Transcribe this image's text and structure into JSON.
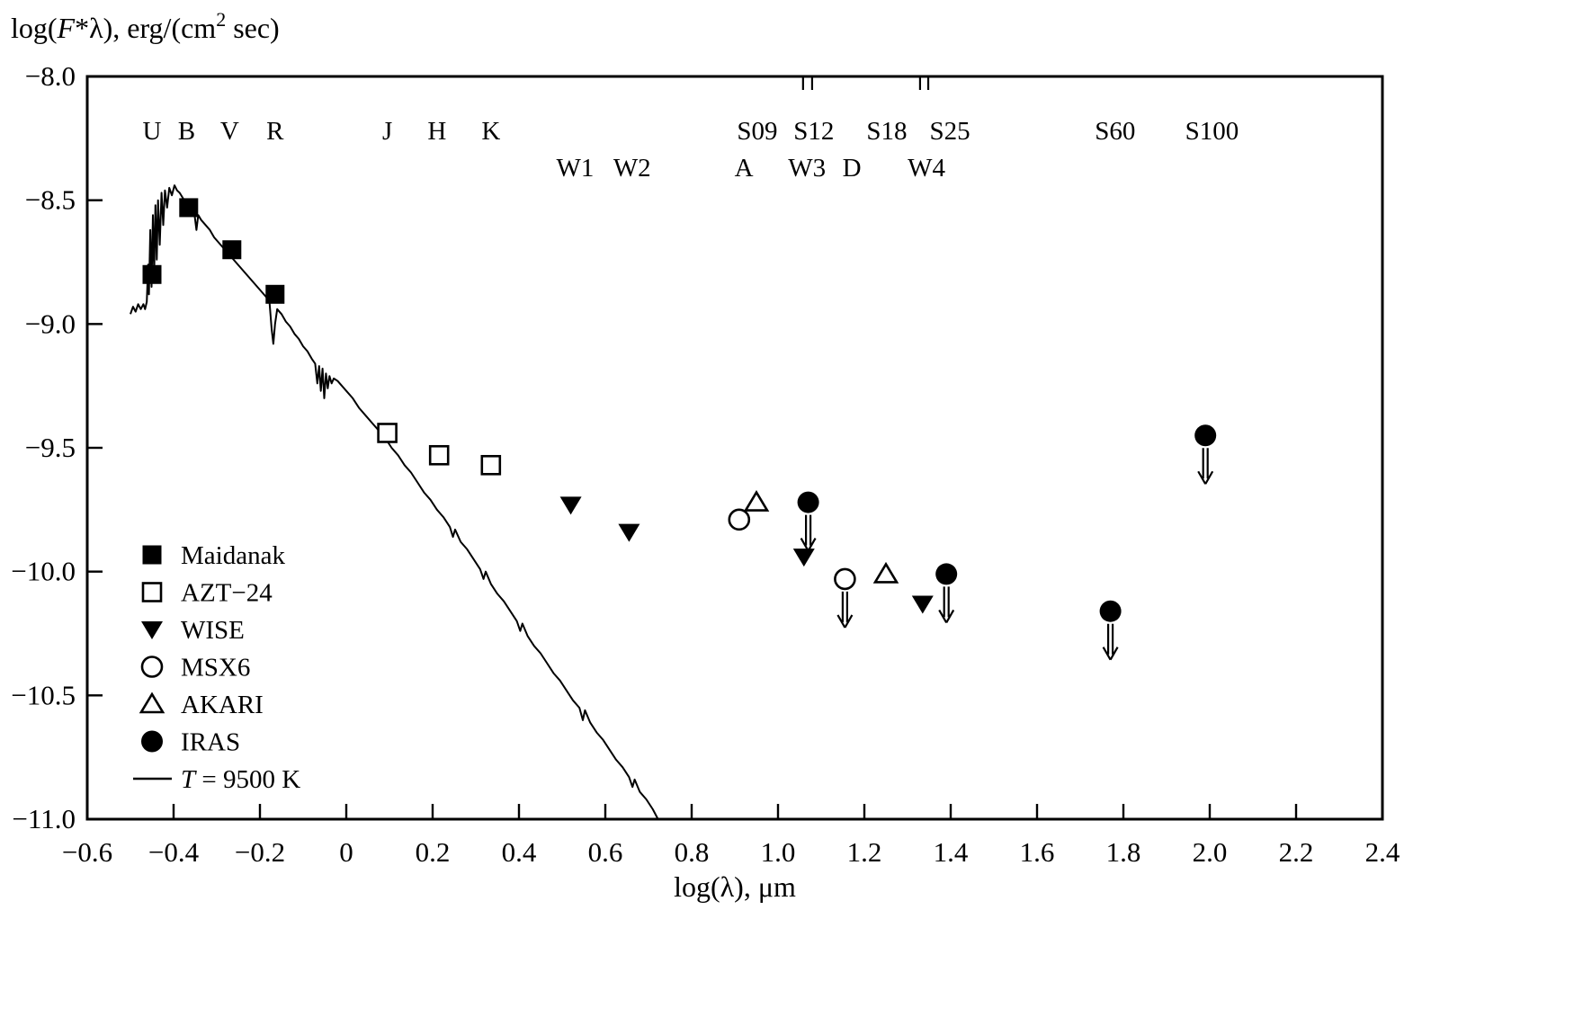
{
  "chart_data": {
    "type": "scatter",
    "title": "",
    "xlabel_parts": {
      "pre": "log(",
      "sym": "λ",
      "post": "), μm"
    },
    "ylabel_parts": {
      "pre": "log(",
      "f": "F",
      "mid": "*λ), erg/(cm",
      "sup": "2",
      "post": " sec)"
    },
    "xlim": [
      -0.6,
      2.4
    ],
    "ylim": [
      -11.0,
      -8.0
    ],
    "grid": false,
    "x_ticks": [
      {
        "v": -0.6,
        "label": "−0.6"
      },
      {
        "v": -0.4,
        "label": "−0.4"
      },
      {
        "v": -0.2,
        "label": "−0.2"
      },
      {
        "v": 0.0,
        "label": "0"
      },
      {
        "v": 0.2,
        "label": "0.2"
      },
      {
        "v": 0.4,
        "label": "0.4"
      },
      {
        "v": 0.6,
        "label": "0.6"
      },
      {
        "v": 0.8,
        "label": "0.8"
      },
      {
        "v": 1.0,
        "label": "1.0"
      },
      {
        "v": 1.2,
        "label": "1.2"
      },
      {
        "v": 1.4,
        "label": "1.4"
      },
      {
        "v": 1.6,
        "label": "1.6"
      },
      {
        "v": 1.8,
        "label": "1.8"
      },
      {
        "v": 2.0,
        "label": "2.0"
      },
      {
        "v": 2.2,
        "label": "2.2"
      },
      {
        "v": 2.4,
        "label": "2.4"
      }
    ],
    "y_ticks": [
      {
        "v": -8.0,
        "label": "−8.0"
      },
      {
        "v": -8.5,
        "label": "−8.5"
      },
      {
        "v": -9.0,
        "label": "−9.0"
      },
      {
        "v": -9.5,
        "label": "−9.5"
      },
      {
        "v": -10.0,
        "label": "−10.0"
      },
      {
        "v": -10.5,
        "label": "−10.5"
      },
      {
        "v": -11.0,
        "label": "−11.0"
      }
    ],
    "band_labels": [
      {
        "text": "U",
        "x": -0.45,
        "row": 1
      },
      {
        "text": "B",
        "x": -0.37,
        "row": 1
      },
      {
        "text": "V",
        "x": -0.27,
        "row": 1
      },
      {
        "text": "R",
        "x": -0.165,
        "row": 1
      },
      {
        "text": "J",
        "x": 0.095,
        "row": 1
      },
      {
        "text": "H",
        "x": 0.21,
        "row": 1
      },
      {
        "text": "K",
        "x": 0.335,
        "row": 1
      },
      {
        "text": "S09",
        "x": 0.952,
        "row": 1
      },
      {
        "text": "S12",
        "x": 1.083,
        "row": 1
      },
      {
        "text": "S18",
        "x": 1.252,
        "row": 1
      },
      {
        "text": "S25",
        "x": 1.398,
        "row": 1
      },
      {
        "text": "S60",
        "x": 1.781,
        "row": 1
      },
      {
        "text": "S100",
        "x": 2.005,
        "row": 1
      },
      {
        "text": "W1",
        "x": 0.53,
        "row": 2
      },
      {
        "text": "W2",
        "x": 0.662,
        "row": 2
      },
      {
        "text": "A",
        "x": 0.921,
        "row": 2
      },
      {
        "text": "W3",
        "x": 1.067,
        "row": 2
      },
      {
        "text": "D",
        "x": 1.171,
        "row": 2
      },
      {
        "text": "W4",
        "x": 1.344,
        "row": 2
      }
    ],
    "top_band_ticks": [
      1.058,
      1.079,
      1.329,
      1.348
    ],
    "series": [
      {
        "name": "Maidanak",
        "marker": "filled-square",
        "points": [
          [
            -0.45,
            -8.8
          ],
          [
            -0.365,
            -8.53
          ],
          [
            -0.265,
            -8.7
          ],
          [
            -0.165,
            -8.88
          ]
        ]
      },
      {
        "name": "AZT−24",
        "marker": "open-square",
        "points": [
          [
            0.095,
            -9.44
          ],
          [
            0.215,
            -9.53
          ],
          [
            0.335,
            -9.57
          ]
        ]
      },
      {
        "name": "WISE",
        "marker": "filled-triangle-down",
        "points": [
          [
            0.52,
            -9.73
          ],
          [
            0.655,
            -9.84
          ],
          [
            1.06,
            -9.94
          ],
          [
            1.335,
            -10.13
          ]
        ]
      },
      {
        "name": "MSX6",
        "marker": "open-circle",
        "points": [
          [
            0.91,
            -9.79
          ],
          [
            1.155,
            -10.03
          ]
        ]
      },
      {
        "name": "AKARI",
        "marker": "open-triangle-up",
        "points": [
          [
            0.95,
            -9.72
          ],
          [
            1.25,
            -10.01
          ]
        ]
      },
      {
        "name": "IRAS",
        "marker": "filled-circle",
        "points": [
          [
            1.07,
            -9.72
          ],
          [
            1.39,
            -10.01
          ],
          [
            1.77,
            -10.16
          ],
          [
            1.99,
            -9.45
          ]
        ]
      }
    ],
    "upper_limit_arrows": [
      {
        "x": 1.07,
        "y": -9.72
      },
      {
        "x": 1.155,
        "y": -10.03
      },
      {
        "x": 1.39,
        "y": -10.01
      },
      {
        "x": 1.77,
        "y": -10.16
      },
      {
        "x": 1.99,
        "y": -9.45
      }
    ],
    "model_curve": {
      "label_italic": "T",
      "label_rest": " = 9500 K",
      "points": [
        [
          -0.5,
          -8.96
        ],
        [
          -0.494,
          -8.93
        ],
        [
          -0.488,
          -8.95
        ],
        [
          -0.482,
          -8.92
        ],
        [
          -0.476,
          -8.94
        ],
        [
          -0.47,
          -8.92
        ],
        [
          -0.466,
          -8.94
        ],
        [
          -0.462,
          -8.91
        ],
        [
          -0.459,
          -8.76
        ],
        [
          -0.457,
          -8.88
        ],
        [
          -0.454,
          -8.62
        ],
        [
          -0.451,
          -8.85
        ],
        [
          -0.448,
          -8.56
        ],
        [
          -0.445,
          -8.8
        ],
        [
          -0.442,
          -8.52
        ],
        [
          -0.439,
          -8.74
        ],
        [
          -0.436,
          -8.5
        ],
        [
          -0.432,
          -8.68
        ],
        [
          -0.428,
          -8.47
        ],
        [
          -0.424,
          -8.6
        ],
        [
          -0.42,
          -8.46
        ],
        [
          -0.415,
          -8.53
        ],
        [
          -0.41,
          -8.45
        ],
        [
          -0.404,
          -8.48
        ],
        [
          -0.398,
          -8.44
        ],
        [
          -0.392,
          -8.46
        ],
        [
          -0.386,
          -8.47
        ],
        [
          -0.379,
          -8.49
        ],
        [
          -0.372,
          -8.51
        ],
        [
          -0.365,
          -8.52
        ],
        [
          -0.358,
          -8.54
        ],
        [
          -0.352,
          -8.55
        ],
        [
          -0.347,
          -8.62
        ],
        [
          -0.343,
          -8.56
        ],
        [
          -0.336,
          -8.58
        ],
        [
          -0.326,
          -8.6
        ],
        [
          -0.316,
          -8.62
        ],
        [
          -0.306,
          -8.65
        ],
        [
          -0.296,
          -8.67
        ],
        [
          -0.286,
          -8.69
        ],
        [
          -0.276,
          -8.71
        ],
        [
          -0.266,
          -8.73
        ],
        [
          -0.256,
          -8.75
        ],
        [
          -0.246,
          -8.77
        ],
        [
          -0.236,
          -8.79
        ],
        [
          -0.226,
          -8.81
        ],
        [
          -0.216,
          -8.83
        ],
        [
          -0.206,
          -8.85
        ],
        [
          -0.196,
          -8.87
        ],
        [
          -0.186,
          -8.89
        ],
        [
          -0.178,
          -8.91
        ],
        [
          -0.173,
          -9.02
        ],
        [
          -0.169,
          -9.08
        ],
        [
          -0.165,
          -9.0
        ],
        [
          -0.16,
          -8.94
        ],
        [
          -0.15,
          -8.96
        ],
        [
          -0.14,
          -8.99
        ],
        [
          -0.13,
          -9.01
        ],
        [
          -0.12,
          -9.04
        ],
        [
          -0.11,
          -9.06
        ],
        [
          -0.1,
          -9.09
        ],
        [
          -0.09,
          -9.11
        ],
        [
          -0.08,
          -9.14
        ],
        [
          -0.072,
          -9.16
        ],
        [
          -0.067,
          -9.24
        ],
        [
          -0.063,
          -9.17
        ],
        [
          -0.059,
          -9.27
        ],
        [
          -0.055,
          -9.18
        ],
        [
          -0.051,
          -9.3
        ],
        [
          -0.047,
          -9.2
        ],
        [
          -0.043,
          -9.26
        ],
        [
          -0.039,
          -9.21
        ],
        [
          -0.034,
          -9.24
        ],
        [
          -0.029,
          -9.22
        ],
        [
          -0.02,
          -9.23
        ],
        [
          -0.01,
          -9.25
        ],
        [
          0.0,
          -9.27
        ],
        [
          0.015,
          -9.3
        ],
        [
          0.03,
          -9.34
        ],
        [
          0.045,
          -9.37
        ],
        [
          0.06,
          -9.4
        ],
        [
          0.075,
          -9.43
        ],
        [
          0.09,
          -9.46
        ],
        [
          0.105,
          -9.5
        ],
        [
          0.12,
          -9.53
        ],
        [
          0.135,
          -9.57
        ],
        [
          0.15,
          -9.6
        ],
        [
          0.165,
          -9.64
        ],
        [
          0.18,
          -9.68
        ],
        [
          0.195,
          -9.71
        ],
        [
          0.21,
          -9.75
        ],
        [
          0.225,
          -9.78
        ],
        [
          0.24,
          -9.82
        ],
        [
          0.247,
          -9.86
        ],
        [
          0.252,
          -9.83
        ],
        [
          0.265,
          -9.88
        ],
        [
          0.28,
          -9.91
        ],
        [
          0.295,
          -9.95
        ],
        [
          0.31,
          -9.99
        ],
        [
          0.318,
          -10.03
        ],
        [
          0.323,
          -10.0
        ],
        [
          0.335,
          -10.05
        ],
        [
          0.35,
          -10.09
        ],
        [
          0.365,
          -10.12
        ],
        [
          0.38,
          -10.16
        ],
        [
          0.395,
          -10.2
        ],
        [
          0.403,
          -10.24
        ],
        [
          0.408,
          -10.21
        ],
        [
          0.42,
          -10.26
        ],
        [
          0.435,
          -10.3
        ],
        [
          0.45,
          -10.33
        ],
        [
          0.465,
          -10.37
        ],
        [
          0.48,
          -10.41
        ],
        [
          0.495,
          -10.44
        ],
        [
          0.51,
          -10.48
        ],
        [
          0.525,
          -10.52
        ],
        [
          0.54,
          -10.55
        ],
        [
          0.548,
          -10.6
        ],
        [
          0.553,
          -10.56
        ],
        [
          0.565,
          -10.61
        ],
        [
          0.58,
          -10.65
        ],
        [
          0.595,
          -10.68
        ],
        [
          0.61,
          -10.72
        ],
        [
          0.625,
          -10.76
        ],
        [
          0.64,
          -10.79
        ],
        [
          0.655,
          -10.83
        ],
        [
          0.663,
          -10.87
        ],
        [
          0.668,
          -10.84
        ],
        [
          0.68,
          -10.89
        ],
        [
          0.695,
          -10.92
        ],
        [
          0.71,
          -10.96
        ],
        [
          0.722,
          -11.0
        ]
      ]
    },
    "legend": {
      "position": "lower-left",
      "entries": [
        {
          "label": "Maidanak",
          "marker": "filled-square"
        },
        {
          "label": "AZT−24",
          "marker": "open-square"
        },
        {
          "label": "WISE",
          "marker": "filled-triangle-down"
        },
        {
          "label": "MSX6",
          "marker": "open-circle"
        },
        {
          "label": "AKARI",
          "marker": "open-triangle-up"
        },
        {
          "label": "IRAS",
          "marker": "filled-circle"
        },
        {
          "label_italic": "T",
          "label_rest": " = 9500 K",
          "marker": "line"
        }
      ]
    }
  }
}
